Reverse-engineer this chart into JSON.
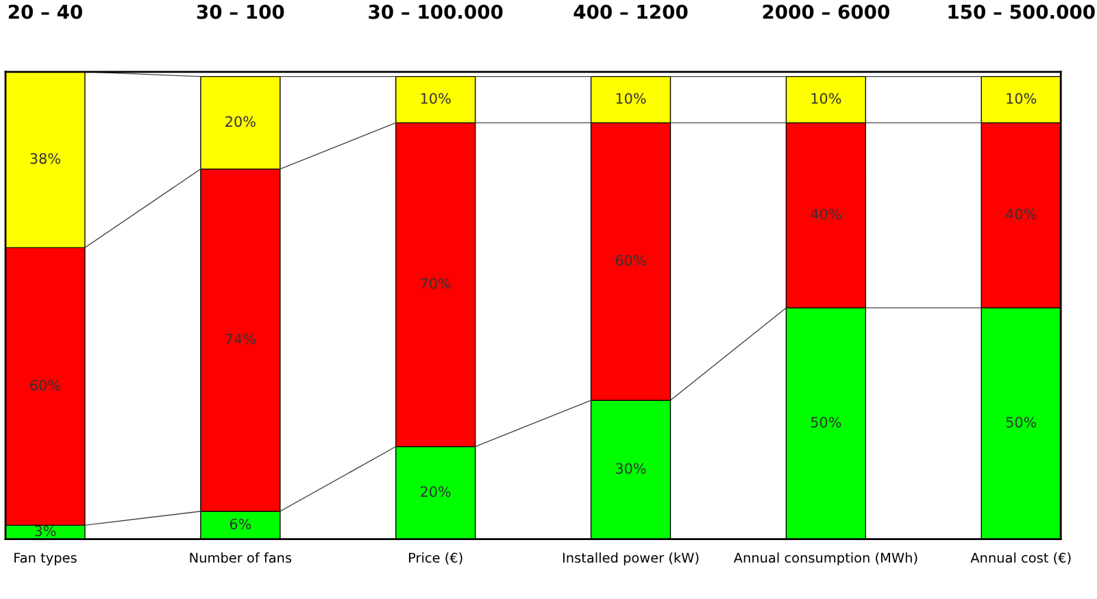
{
  "chart_data": {
    "type": "bar",
    "stacked": true,
    "categories": [
      "Fan types",
      "Number of fans",
      "Price (€)",
      "Installed power (kW)",
      "Annual consumption (MWh)",
      "Annual cost (€)"
    ],
    "series": [
      {
        "color": "#00ff00",
        "values": [
          3,
          6,
          20,
          30,
          50,
          50
        ],
        "value_labels": [
          "3%",
          "6%",
          "20%",
          "30%",
          "50%",
          "50%"
        ]
      },
      {
        "color": "#ff0000",
        "values": [
          60,
          74,
          70,
          60,
          40,
          40
        ],
        "value_labels": [
          "60%",
          "74%",
          "70%",
          "60%",
          "40%",
          "40%"
        ]
      },
      {
        "color": "#ffff00",
        "values": [
          38,
          20,
          10,
          10,
          10,
          10
        ],
        "value_labels": [
          "38%",
          "20%",
          "10%",
          "10%",
          "10%",
          "10%"
        ]
      }
    ],
    "tick_labels": "x",
    "annotations": [
      "20 – 40",
      "30 – 100",
      "30 – 100.000",
      "400 – 1200",
      "2000 – 6000",
      "150 – 500.000"
    ]
  }
}
